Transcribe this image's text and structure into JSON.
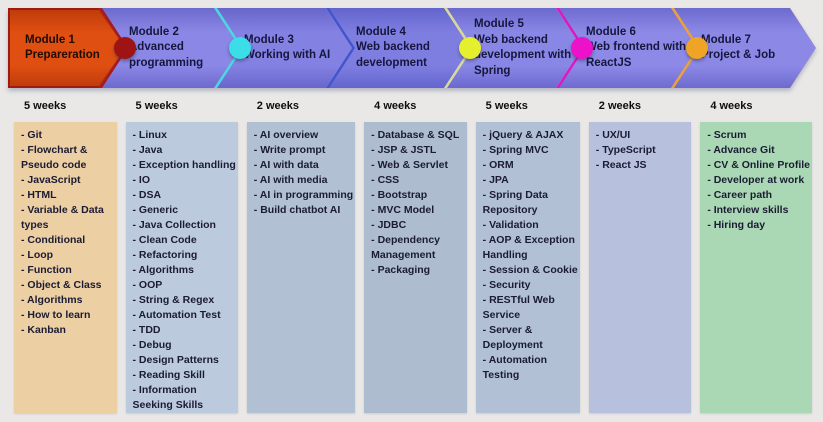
{
  "page": {
    "background": "#e9e8e7"
  },
  "timeline": {
    "modules": [
      {
        "title": "Module 1",
        "subtitle": "Prepareration",
        "fill": "#e04f12",
        "fill_dark": "#c03c0a",
        "line_color": "#9c1c10",
        "dot_color": "#9e1414",
        "text_color": "#200b03"
      },
      {
        "title": "Module 2",
        "subtitle": "Advanced programming",
        "fill": "#8a87e6",
        "fill_dark": "#6d6ace",
        "line_color": "#a81a1a",
        "dot_color": "#3bdde9",
        "text_color": "#16163e"
      },
      {
        "title": "Module 3",
        "subtitle": "Working with AI",
        "fill": "#8381e2",
        "fill_dark": "#6966cb",
        "line_color": "#49d8e6",
        "dot_color": null,
        "text_color": "#16163e"
      },
      {
        "title": "Module 4",
        "subtitle": "Web backend development",
        "fill": "#7e7ee1",
        "fill_dark": "#6365cd",
        "line_color": "#4553cf",
        "dot_color": "#e6ef2e",
        "text_color": "#16163e"
      },
      {
        "title": "Module 5",
        "subtitle": "Web backend development with Spring",
        "fill": "#8987e5",
        "fill_dark": "#6c69ce",
        "line_color": "#d8d99c",
        "dot_color": "#ec12ca",
        "text_color": "#16163e"
      },
      {
        "title": "Module 6",
        "subtitle": "Web frontend with ReactJS",
        "fill": "#8c89e7",
        "fill_dark": "#6f6cd0",
        "line_color": "#dd17c6",
        "dot_color": "#f0a425",
        "text_color": "#16163e"
      },
      {
        "title": "Module 7",
        "subtitle": "Project & Job",
        "fill": "#8b88e6",
        "fill_dark": "#6e6bcf",
        "line_color": "#e9a23b",
        "dot_color": null,
        "text_color": "#16163e"
      }
    ]
  },
  "columns": [
    {
      "weeks": "5 weeks",
      "bg": "#eccfa3",
      "items": [
        [
          "- Git"
        ],
        [
          "- Flowchart &",
          "Pseudo code"
        ],
        [
          "- JavaScript"
        ],
        [
          "- HTML"
        ],
        [
          "- Variable & Data",
          "types"
        ],
        [
          "- Conditional"
        ],
        [
          "- Loop"
        ],
        [
          "- Function"
        ],
        [
          "- Object & Class"
        ],
        [
          "- Algorithms"
        ],
        [
          "- How to learn"
        ],
        [
          "- Kanban"
        ]
      ]
    },
    {
      "weeks": "5 weeks",
      "bg": "#bccadd",
      "items": [
        [
          "- Linux"
        ],
        [
          "- Java"
        ],
        [
          "- Exception handling"
        ],
        [
          "- IO"
        ],
        [
          "- DSA"
        ],
        [
          "- Generic"
        ],
        [
          "- Java Collection"
        ],
        [
          "- Clean Code"
        ],
        [
          "- Refactoring"
        ],
        [
          "- Algorithms"
        ],
        [
          "- OOP"
        ],
        [
          "- String & Regex"
        ],
        [
          "- Automation Test"
        ],
        [
          "- TDD"
        ],
        [
          "- Debug"
        ],
        [
          "- Design Patterns"
        ],
        [
          "- Reading Skill"
        ],
        [
          "- Information",
          "Seeking Skills"
        ]
      ]
    },
    {
      "weeks": "2 weeks",
      "bg": "#b1c0d3",
      "items": [
        [
          "- AI overview"
        ],
        [
          "- Write prompt"
        ],
        [
          "- AI with data"
        ],
        [
          "- AI with media"
        ],
        [
          "- AI in programming"
        ],
        [
          "- Build chatbot AI"
        ]
      ]
    },
    {
      "weeks": "4 weeks",
      "bg": "#adbccf",
      "items": [
        [
          "- Database & SQL"
        ],
        [
          "- JSP & JSTL"
        ],
        [
          "- Web & Servlet"
        ],
        [
          "- CSS"
        ],
        [
          "- Bootstrap"
        ],
        [
          "- MVC Model"
        ],
        [
          "- JDBC"
        ],
        [
          "- Dependency",
          "Management"
        ],
        [
          "- Packaging"
        ]
      ]
    },
    {
      "weeks": "5 weeks",
      "bg": "#b1c0d4",
      "items": [
        [
          "- jQuery & AJAX"
        ],
        [
          "- Spring MVC"
        ],
        [
          "- ORM"
        ],
        [
          "- JPA"
        ],
        [
          "- Spring Data",
          "Repository"
        ],
        [
          "- Validation"
        ],
        [
          "- AOP & Exception",
          "Handling"
        ],
        [
          "- Session & Cookie"
        ],
        [
          "- Security"
        ],
        [
          "- RESTful Web",
          "Service"
        ],
        [
          "- Server &",
          "Deployment"
        ],
        [
          "- Automation",
          "Testing"
        ]
      ]
    },
    {
      "weeks": "2 weeks",
      "bg": "#b7c0dd",
      "items": [
        [
          "- UX/UI"
        ],
        [
          "- TypeScript"
        ],
        [
          "- React JS"
        ]
      ]
    },
    {
      "weeks": "4 weeks",
      "bg": "#aad8b5",
      "items": [
        [
          "- Scrum"
        ],
        [
          "- Advance Git"
        ],
        [
          "- CV & Online Profile"
        ],
        [
          "- Developer at work"
        ],
        [
          "- Career path"
        ],
        [
          "- Interview skills"
        ],
        [
          "- Hiring day"
        ]
      ]
    }
  ]
}
